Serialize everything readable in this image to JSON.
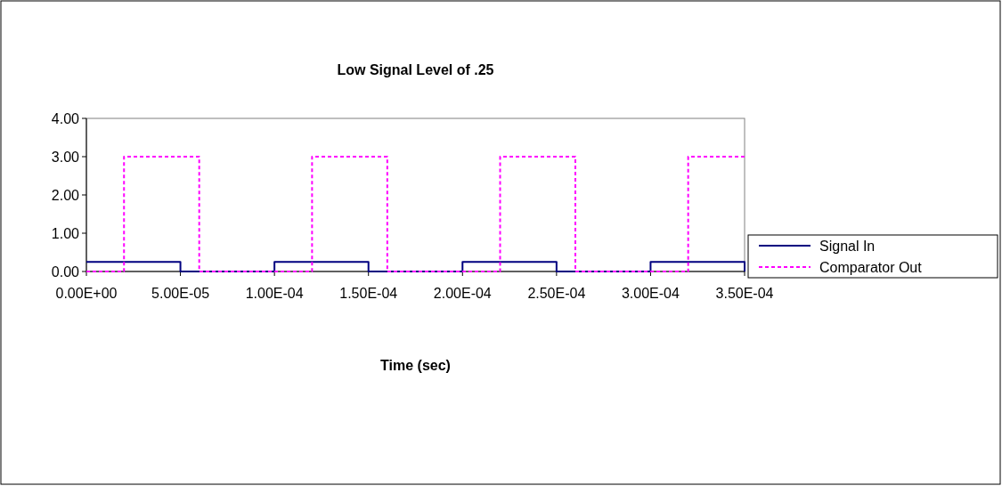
{
  "chart_data": {
    "type": "line",
    "title": "Low Signal Level of .25",
    "xlabel": "Time (sec)",
    "xlim": [
      0,
      0.00035
    ],
    "ylim": [
      0,
      4
    ],
    "xticks": [
      {
        "value": 0,
        "label": "0.00E+00"
      },
      {
        "value": 5e-05,
        "label": "5.00E-05"
      },
      {
        "value": 0.0001,
        "label": "1.00E-04"
      },
      {
        "value": 0.00015,
        "label": "1.50E-04"
      },
      {
        "value": 0.0002,
        "label": "2.00E-04"
      },
      {
        "value": 0.00025,
        "label": "2.50E-04"
      },
      {
        "value": 0.0003,
        "label": "3.00E-04"
      },
      {
        "value": 0.00035,
        "label": "3.50E-04"
      }
    ],
    "yticks": [
      {
        "value": 0,
        "label": "0.00"
      },
      {
        "value": 1,
        "label": "1.00"
      },
      {
        "value": 2,
        "label": "2.00"
      },
      {
        "value": 3,
        "label": "3.00"
      },
      {
        "value": 4,
        "label": "4.00"
      }
    ],
    "grid": false,
    "legend": "right",
    "marker": "none",
    "series": [
      {
        "name": "Signal In",
        "color": "#000080",
        "line_style": "solid",
        "x": [
          0,
          5e-05,
          5e-05,
          0.0001,
          0.0001,
          0.00015,
          0.00015,
          0.0002,
          0.0002,
          0.00025,
          0.00025,
          0.0003,
          0.0003,
          0.00035,
          0.00035
        ],
        "values": [
          0.25,
          0.25,
          0,
          0,
          0.25,
          0.25,
          0,
          0,
          0.25,
          0.25,
          0,
          0,
          0.25,
          0.25,
          0
        ]
      },
      {
        "name": "Comparator Out",
        "color": "#ff00ff",
        "line_style": "dashed",
        "x": [
          0,
          2e-05,
          2e-05,
          6e-05,
          6e-05,
          0.00012,
          0.00012,
          0.00016,
          0.00016,
          0.00022,
          0.00022,
          0.00026,
          0.00026,
          0.00032,
          0.00032,
          0.00035
        ],
        "values": [
          0,
          0,
          3,
          3,
          0,
          0,
          3,
          3,
          0,
          0,
          3,
          3,
          0,
          0,
          3,
          3
        ]
      }
    ]
  }
}
